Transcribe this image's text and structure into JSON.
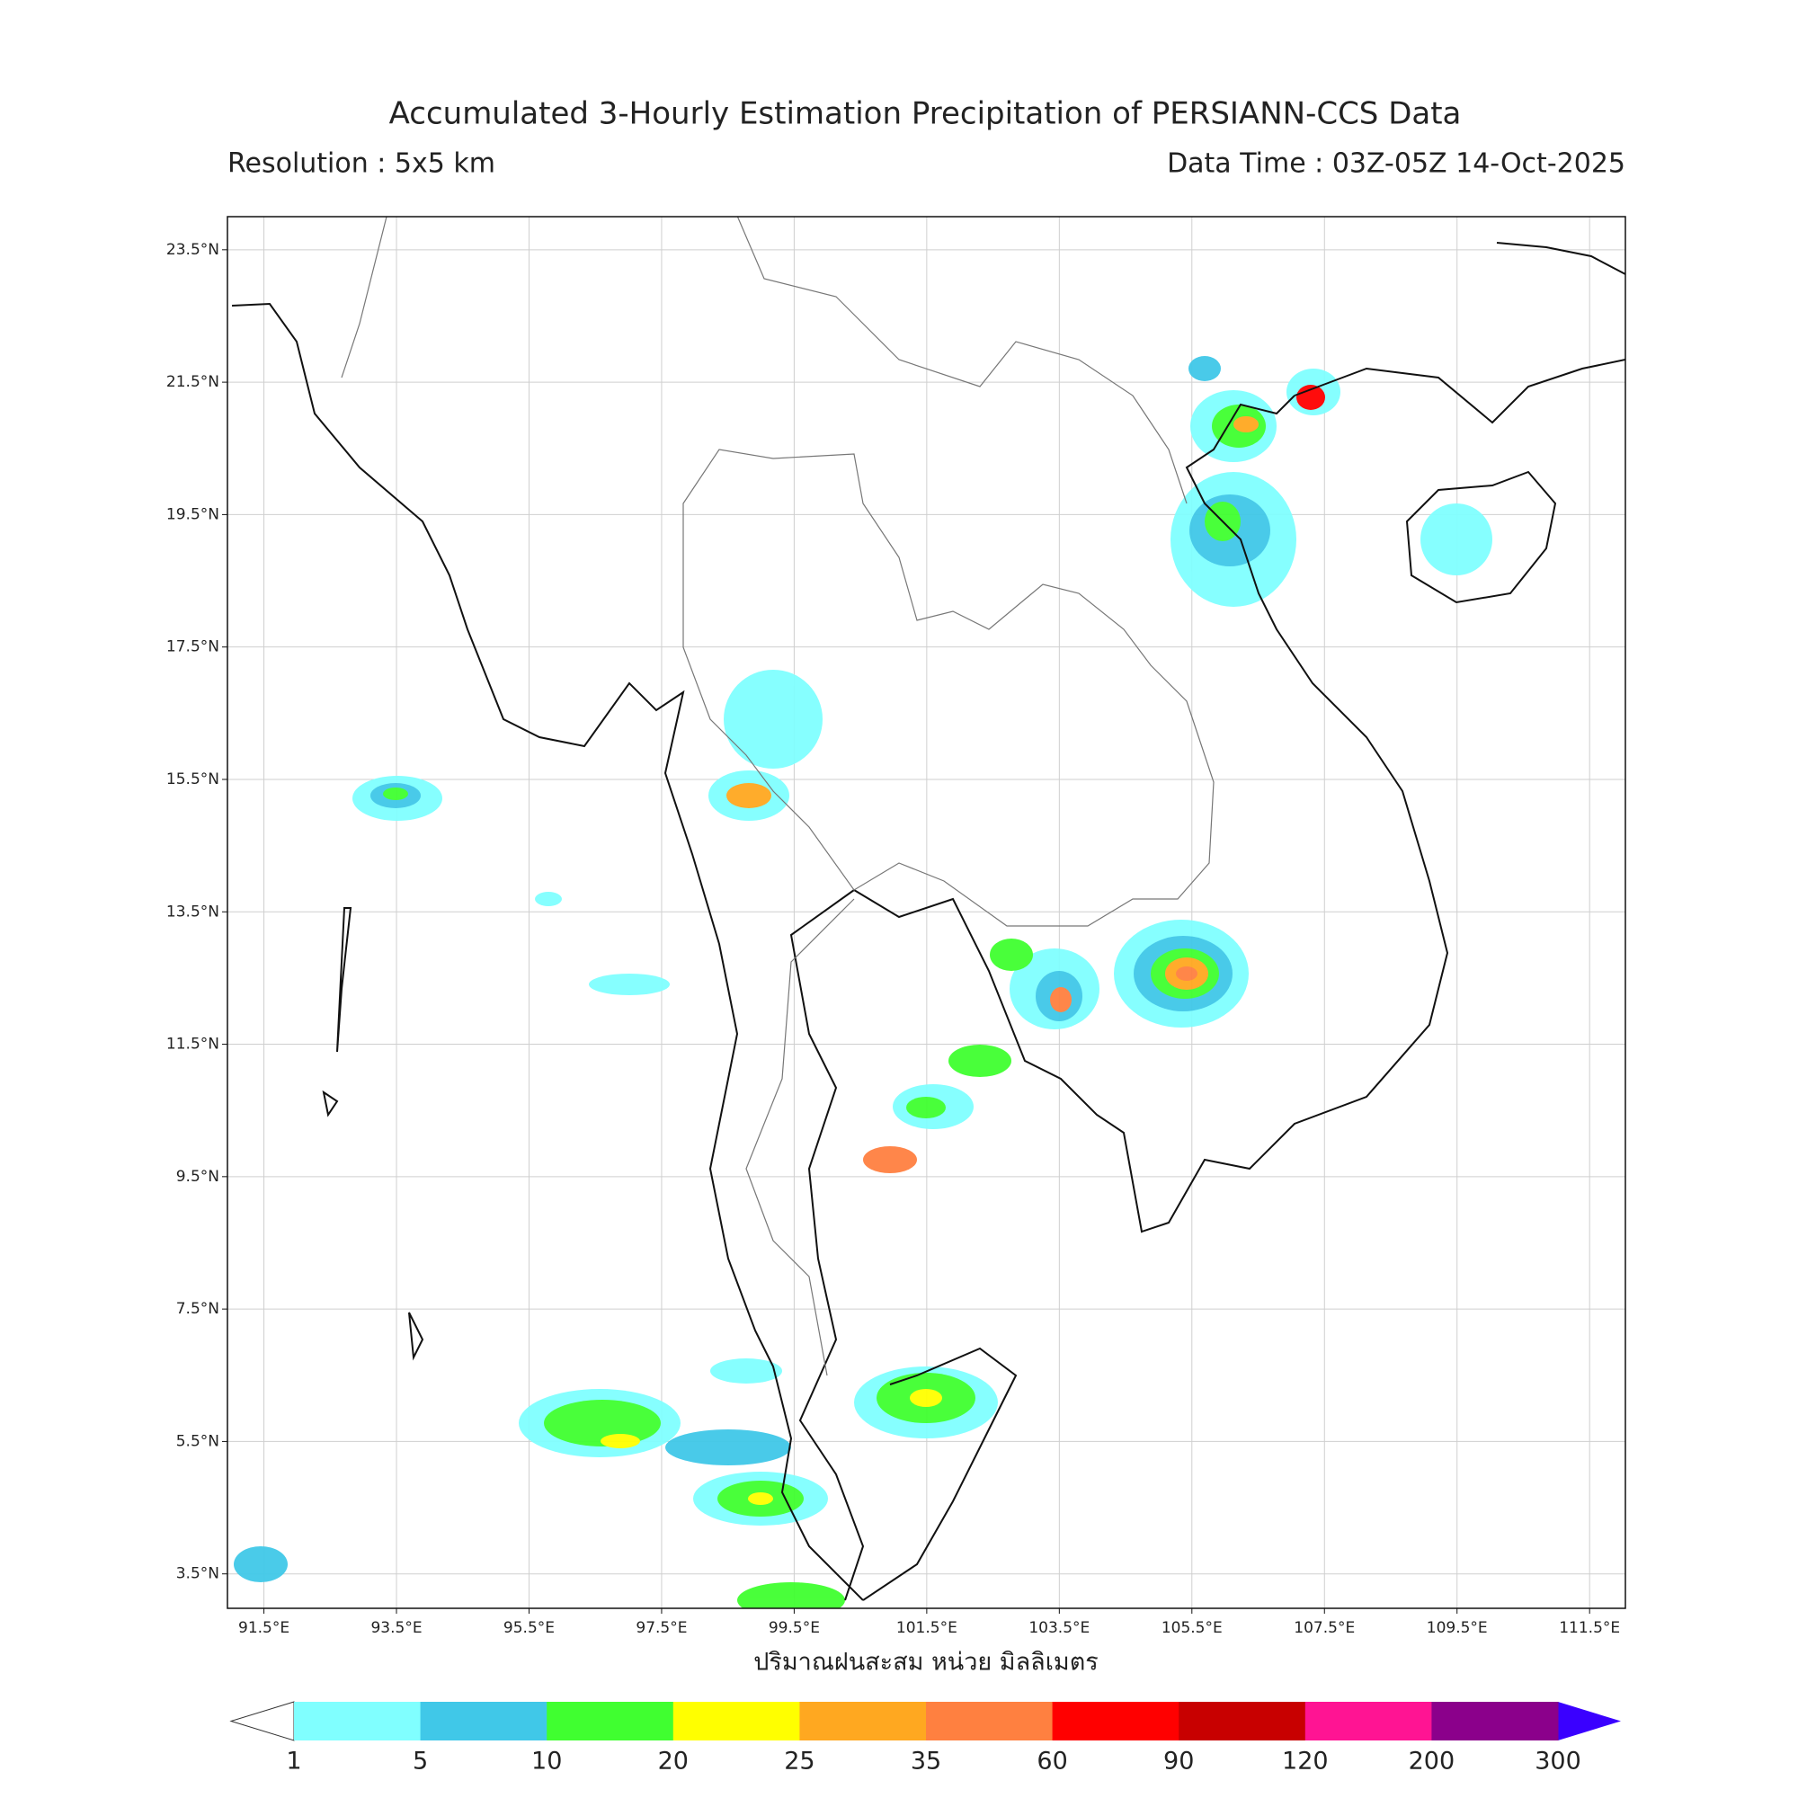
{
  "title": "Accumulated 3-Hourly Estimation Precipitation of PERSIANN-CCS Data",
  "resolution": "Resolution : 5x5 km",
  "data_time": "Data Time : 03Z-05Z 14-Oct-2025",
  "map": {
    "xlim": [
      90.95,
      112.04
    ],
    "ylim": [
      2.98,
      24.0
    ],
    "xticks": [
      {
        "value": 91.5,
        "label": "91.5°E"
      },
      {
        "value": 93.5,
        "label": "93.5°E"
      },
      {
        "value": 95.5,
        "label": "95.5°E"
      },
      {
        "value": 97.5,
        "label": "97.5°E"
      },
      {
        "value": 99.5,
        "label": "99.5°E"
      },
      {
        "value": 101.5,
        "label": "101.5°E"
      },
      {
        "value": 103.5,
        "label": "103.5°E"
      },
      {
        "value": 105.5,
        "label": "105.5°E"
      },
      {
        "value": 107.5,
        "label": "107.5°E"
      },
      {
        "value": 109.5,
        "label": "109.5°E"
      },
      {
        "value": 111.5,
        "label": "111.5°E"
      }
    ],
    "yticks": [
      {
        "value": 3.5,
        "label": "3.5°N"
      },
      {
        "value": 5.5,
        "label": "5.5°N"
      },
      {
        "value": 7.5,
        "label": "7.5°N"
      },
      {
        "value": 9.5,
        "label": "9.5°N"
      },
      {
        "value": 11.5,
        "label": "11.5°N"
      },
      {
        "value": 13.5,
        "label": "13.5°N"
      },
      {
        "value": 15.5,
        "label": "15.5°N"
      },
      {
        "value": 17.5,
        "label": "17.5°N"
      },
      {
        "value": 19.5,
        "label": "19.5°N"
      },
      {
        "value": 21.5,
        "label": "21.5°N"
      },
      {
        "value": 23.5,
        "label": "23.5°N"
      }
    ],
    "grid": true
  },
  "xlabel": "ปริมาณฝนสะสม หน่วย มิลลิเมตร",
  "colorbar": {
    "levels": [
      1,
      5,
      10,
      20,
      25,
      35,
      60,
      90,
      120,
      200,
      300
    ],
    "colors": [
      "#80ffff",
      "#40c8e8",
      "#40ff30",
      "#ffff00",
      "#ffa820",
      "#ff8040",
      "#ff0000",
      "#c80000",
      "#ff1493",
      "#8b008b"
    ],
    "under_color": "#ffffff",
    "over_color": "#3a00ff"
  }
}
